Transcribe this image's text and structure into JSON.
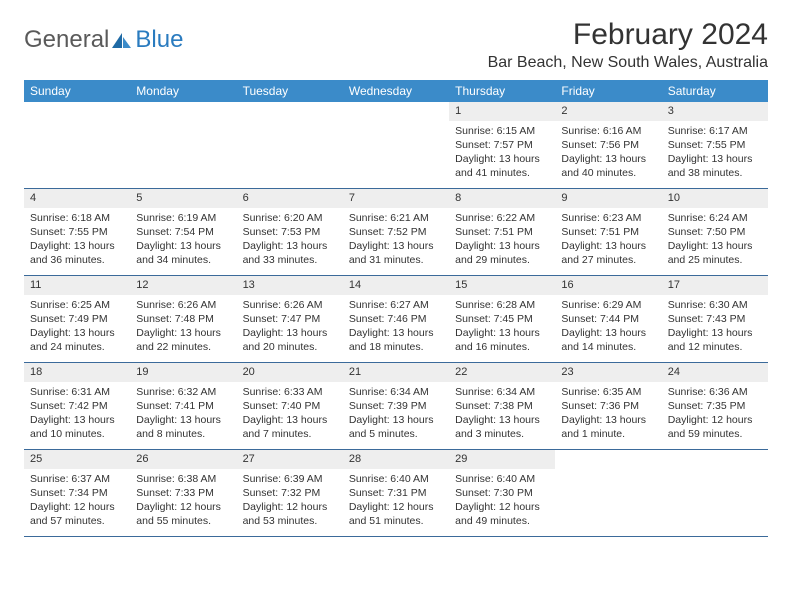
{
  "logo": {
    "text1": "General",
    "text2": "Blue"
  },
  "title": "February 2024",
  "location": "Bar Beach, New South Wales, Australia",
  "weekday_header_bg": "#3b8bc9",
  "weekday_header_fg": "#ffffff",
  "daynum_bg": "#eeeeee",
  "row_border_color": "#3b6a9a",
  "weekdays": [
    "Sunday",
    "Monday",
    "Tuesday",
    "Wednesday",
    "Thursday",
    "Friday",
    "Saturday"
  ],
  "weeks": [
    [
      {
        "n": "",
        "lines": []
      },
      {
        "n": "",
        "lines": []
      },
      {
        "n": "",
        "lines": []
      },
      {
        "n": "",
        "lines": []
      },
      {
        "n": "1",
        "lines": [
          "Sunrise: 6:15 AM",
          "Sunset: 7:57 PM",
          "Daylight: 13 hours and 41 minutes."
        ]
      },
      {
        "n": "2",
        "lines": [
          "Sunrise: 6:16 AM",
          "Sunset: 7:56 PM",
          "Daylight: 13 hours and 40 minutes."
        ]
      },
      {
        "n": "3",
        "lines": [
          "Sunrise: 6:17 AM",
          "Sunset: 7:55 PM",
          "Daylight: 13 hours and 38 minutes."
        ]
      }
    ],
    [
      {
        "n": "4",
        "lines": [
          "Sunrise: 6:18 AM",
          "Sunset: 7:55 PM",
          "Daylight: 13 hours and 36 minutes."
        ]
      },
      {
        "n": "5",
        "lines": [
          "Sunrise: 6:19 AM",
          "Sunset: 7:54 PM",
          "Daylight: 13 hours and 34 minutes."
        ]
      },
      {
        "n": "6",
        "lines": [
          "Sunrise: 6:20 AM",
          "Sunset: 7:53 PM",
          "Daylight: 13 hours and 33 minutes."
        ]
      },
      {
        "n": "7",
        "lines": [
          "Sunrise: 6:21 AM",
          "Sunset: 7:52 PM",
          "Daylight: 13 hours and 31 minutes."
        ]
      },
      {
        "n": "8",
        "lines": [
          "Sunrise: 6:22 AM",
          "Sunset: 7:51 PM",
          "Daylight: 13 hours and 29 minutes."
        ]
      },
      {
        "n": "9",
        "lines": [
          "Sunrise: 6:23 AM",
          "Sunset: 7:51 PM",
          "Daylight: 13 hours and 27 minutes."
        ]
      },
      {
        "n": "10",
        "lines": [
          "Sunrise: 6:24 AM",
          "Sunset: 7:50 PM",
          "Daylight: 13 hours and 25 minutes."
        ]
      }
    ],
    [
      {
        "n": "11",
        "lines": [
          "Sunrise: 6:25 AM",
          "Sunset: 7:49 PM",
          "Daylight: 13 hours and 24 minutes."
        ]
      },
      {
        "n": "12",
        "lines": [
          "Sunrise: 6:26 AM",
          "Sunset: 7:48 PM",
          "Daylight: 13 hours and 22 minutes."
        ]
      },
      {
        "n": "13",
        "lines": [
          "Sunrise: 6:26 AM",
          "Sunset: 7:47 PM",
          "Daylight: 13 hours and 20 minutes."
        ]
      },
      {
        "n": "14",
        "lines": [
          "Sunrise: 6:27 AM",
          "Sunset: 7:46 PM",
          "Daylight: 13 hours and 18 minutes."
        ]
      },
      {
        "n": "15",
        "lines": [
          "Sunrise: 6:28 AM",
          "Sunset: 7:45 PM",
          "Daylight: 13 hours and 16 minutes."
        ]
      },
      {
        "n": "16",
        "lines": [
          "Sunrise: 6:29 AM",
          "Sunset: 7:44 PM",
          "Daylight: 13 hours and 14 minutes."
        ]
      },
      {
        "n": "17",
        "lines": [
          "Sunrise: 6:30 AM",
          "Sunset: 7:43 PM",
          "Daylight: 13 hours and 12 minutes."
        ]
      }
    ],
    [
      {
        "n": "18",
        "lines": [
          "Sunrise: 6:31 AM",
          "Sunset: 7:42 PM",
          "Daylight: 13 hours and 10 minutes."
        ]
      },
      {
        "n": "19",
        "lines": [
          "Sunrise: 6:32 AM",
          "Sunset: 7:41 PM",
          "Daylight: 13 hours and 8 minutes."
        ]
      },
      {
        "n": "20",
        "lines": [
          "Sunrise: 6:33 AM",
          "Sunset: 7:40 PM",
          "Daylight: 13 hours and 7 minutes."
        ]
      },
      {
        "n": "21",
        "lines": [
          "Sunrise: 6:34 AM",
          "Sunset: 7:39 PM",
          "Daylight: 13 hours and 5 minutes."
        ]
      },
      {
        "n": "22",
        "lines": [
          "Sunrise: 6:34 AM",
          "Sunset: 7:38 PM",
          "Daylight: 13 hours and 3 minutes."
        ]
      },
      {
        "n": "23",
        "lines": [
          "Sunrise: 6:35 AM",
          "Sunset: 7:36 PM",
          "Daylight: 13 hours and 1 minute."
        ]
      },
      {
        "n": "24",
        "lines": [
          "Sunrise: 6:36 AM",
          "Sunset: 7:35 PM",
          "Daylight: 12 hours and 59 minutes."
        ]
      }
    ],
    [
      {
        "n": "25",
        "lines": [
          "Sunrise: 6:37 AM",
          "Sunset: 7:34 PM",
          "Daylight: 12 hours and 57 minutes."
        ]
      },
      {
        "n": "26",
        "lines": [
          "Sunrise: 6:38 AM",
          "Sunset: 7:33 PM",
          "Daylight: 12 hours and 55 minutes."
        ]
      },
      {
        "n": "27",
        "lines": [
          "Sunrise: 6:39 AM",
          "Sunset: 7:32 PM",
          "Daylight: 12 hours and 53 minutes."
        ]
      },
      {
        "n": "28",
        "lines": [
          "Sunrise: 6:40 AM",
          "Sunset: 7:31 PM",
          "Daylight: 12 hours and 51 minutes."
        ]
      },
      {
        "n": "29",
        "lines": [
          "Sunrise: 6:40 AM",
          "Sunset: 7:30 PM",
          "Daylight: 12 hours and 49 minutes."
        ]
      },
      {
        "n": "",
        "lines": []
      },
      {
        "n": "",
        "lines": []
      }
    ]
  ]
}
